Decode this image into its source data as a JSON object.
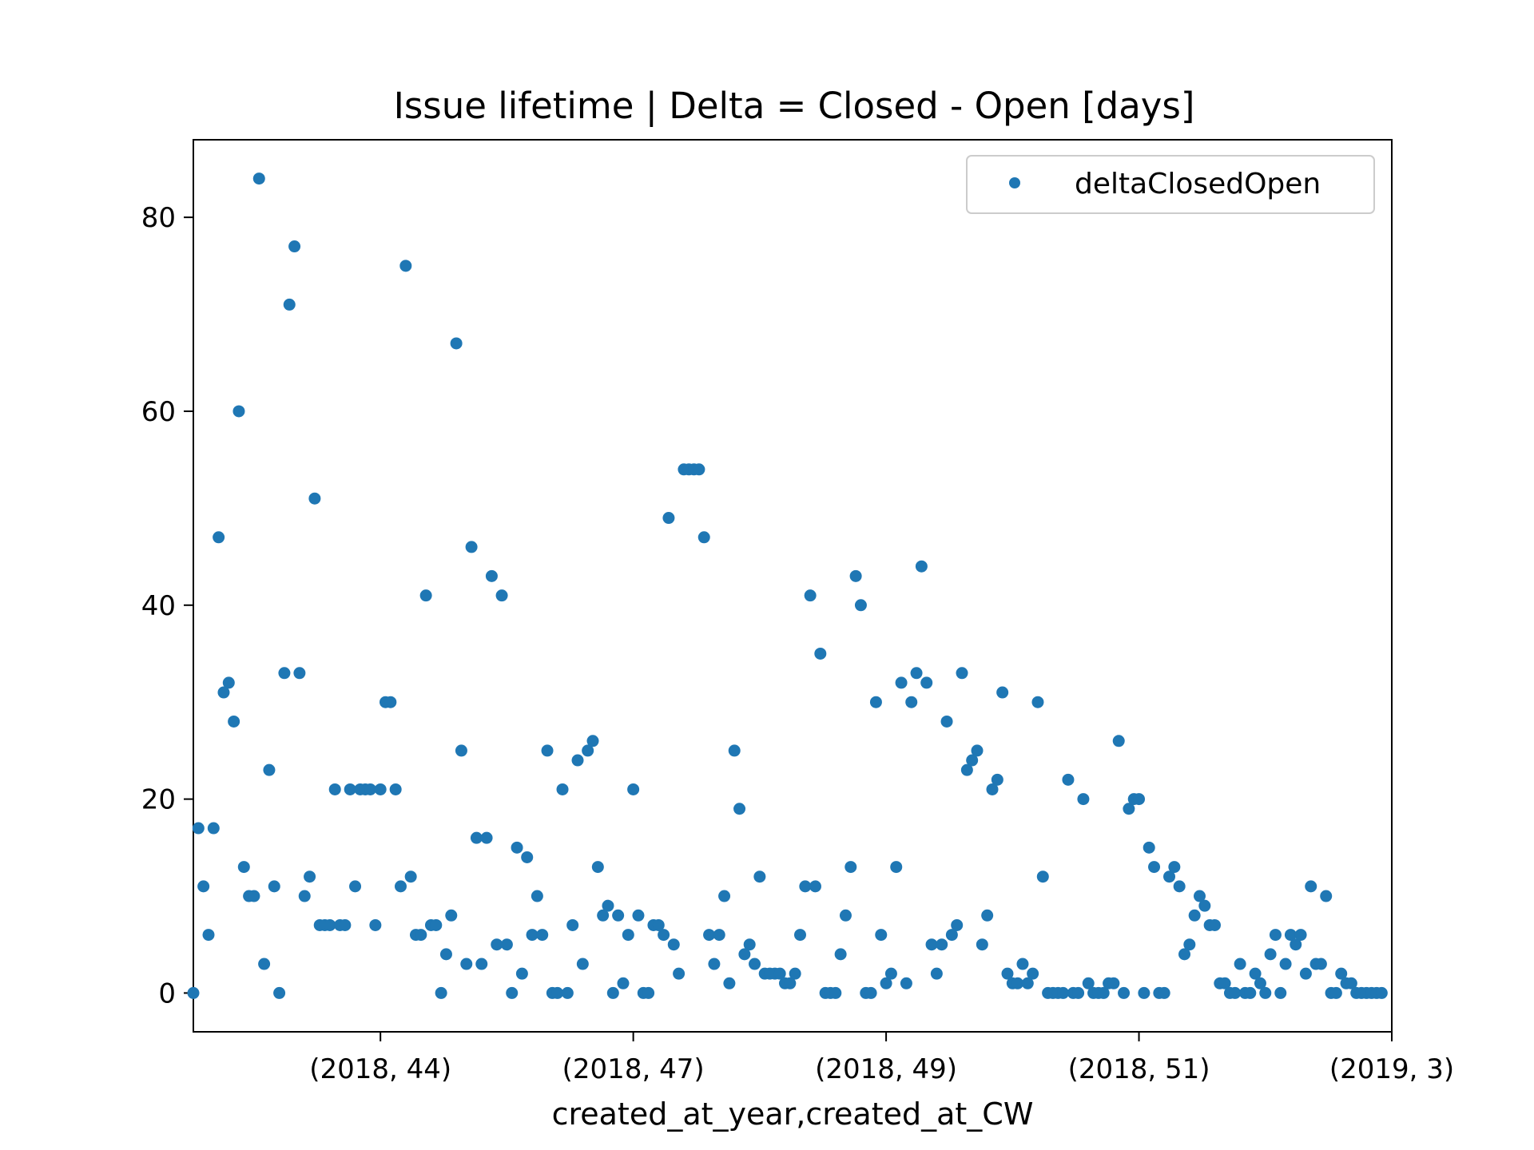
{
  "chart_data": {
    "type": "scatter",
    "title": "Issue lifetime | Delta = Closed - Open [days]",
    "xlabel": "created_at_year,created_at_CW",
    "ylabel": "",
    "x_tick_labels": [
      {
        "index": 37,
        "label": "(2018, 44)"
      },
      {
        "index": 87,
        "label": "(2018, 47)"
      },
      {
        "index": 137,
        "label": "(2018, 49)"
      },
      {
        "index": 187,
        "label": "(2018, 51)"
      },
      {
        "index": 237,
        "label": "(2019, 3)"
      }
    ],
    "y_ticks": [
      0,
      20,
      40,
      60,
      80
    ],
    "xlim": [
      0,
      237
    ],
    "ylim": [
      -4,
      88
    ],
    "grid": false,
    "legend_position": "top-right",
    "series": [
      {
        "name": "deltaClosedOpen",
        "color": "#1f77b4",
        "values": [
          0,
          17,
          11,
          6,
          17,
          47,
          31,
          32,
          28,
          60,
          13,
          10,
          10,
          84,
          3,
          23,
          11,
          0,
          33,
          71,
          77,
          33,
          10,
          12,
          51,
          7,
          7,
          7,
          21,
          7,
          7,
          21,
          11,
          21,
          21,
          21,
          7,
          21,
          30,
          30,
          21,
          11,
          75,
          12,
          6,
          6,
          41,
          7,
          7,
          0,
          4,
          8,
          67,
          25,
          3,
          46,
          16,
          3,
          16,
          43,
          5,
          41,
          5,
          0,
          15,
          2,
          14,
          6,
          10,
          6,
          25,
          0,
          0,
          21,
          0,
          7,
          24,
          3,
          25,
          26,
          13,
          8,
          9,
          0,
          8,
          1,
          6,
          21,
          8,
          0,
          0,
          7,
          7,
          6,
          49,
          5,
          2,
          54,
          54,
          54,
          54,
          47,
          6,
          3,
          6,
          10,
          1,
          25,
          19,
          4,
          5,
          3,
          12,
          2,
          2,
          2,
          2,
          1,
          1,
          2,
          6,
          11,
          41,
          11,
          35,
          0,
          0,
          0,
          4,
          8,
          13,
          43,
          40,
          0,
          0,
          30,
          6,
          1,
          2,
          13,
          32,
          1,
          30,
          33,
          44,
          32,
          5,
          2,
          5,
          28,
          6,
          7,
          33,
          23,
          24,
          25,
          5,
          8,
          21,
          22,
          31,
          2,
          1,
          1,
          3,
          1,
          2,
          30,
          12,
          0,
          0,
          0,
          0,
          22,
          0,
          0,
          20,
          1,
          0,
          0,
          0,
          1,
          1,
          26,
          0,
          19,
          20,
          20,
          0,
          15,
          13,
          0,
          0,
          12,
          13,
          11,
          4,
          5,
          8,
          10,
          9,
          7,
          7,
          1,
          1,
          0,
          0,
          3,
          0,
          0,
          2,
          1,
          0,
          4,
          6,
          0,
          3,
          6,
          5,
          6,
          2,
          11,
          3,
          3,
          10,
          0,
          0,
          2,
          1,
          1,
          0,
          0,
          0,
          0,
          0,
          0
        ]
      }
    ]
  }
}
